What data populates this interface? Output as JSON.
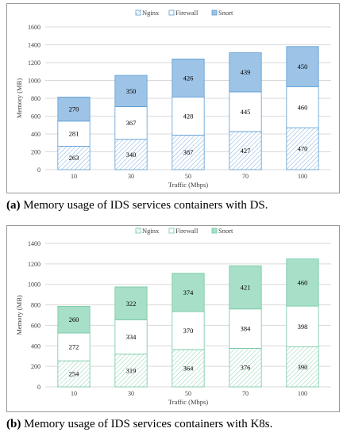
{
  "chart_data": [
    {
      "type": "bar",
      "stacked": true,
      "categories": [
        "10",
        "30",
        "50",
        "70",
        "100"
      ],
      "series": [
        {
          "name": "Nginx",
          "values": [
            263,
            340,
            387,
            427,
            470
          ]
        },
        {
          "name": "Firewall",
          "values": [
            281,
            367,
            428,
            445,
            460
          ]
        },
        {
          "name": "Snort",
          "values": [
            270,
            350,
            426,
            439,
            450
          ]
        }
      ],
      "xlabel": "Traffic (Mbps)",
      "ylabel": "Memory (MB)",
      "ylim": [
        0,
        1600
      ],
      "yticks": [
        0,
        200,
        400,
        600,
        800,
        1000,
        1200,
        1400,
        1600
      ],
      "legend": "top-center",
      "grid": "horizontal",
      "colors": {
        "nginx": "#5b9bd5",
        "firewall": "#5b9bd5",
        "snort": "#9dc3e6",
        "border": "#5b9bd5"
      },
      "caption_label": "(a)",
      "caption_text": " Memory usage of IDS services containers with DS."
    },
    {
      "type": "bar",
      "stacked": true,
      "categories": [
        "10",
        "30",
        "50",
        "70",
        "100"
      ],
      "series": [
        {
          "name": "Nginx",
          "values": [
            254,
            319,
            364,
            376,
            390
          ]
        },
        {
          "name": "Firewall",
          "values": [
            272,
            334,
            370,
            384,
            398
          ]
        },
        {
          "name": "Snort",
          "values": [
            260,
            322,
            374,
            421,
            460
          ]
        }
      ],
      "xlabel": "Traffic (Mbps)",
      "ylabel": "Memory (MB)",
      "ylim": [
        0,
        1400
      ],
      "yticks": [
        0,
        200,
        400,
        600,
        800,
        1000,
        1200,
        1400
      ],
      "legend": "top-center",
      "grid": "horizontal",
      "colors": {
        "nginx": "#70c8a0",
        "firewall": "#70c8a0",
        "snort": "#a8dfc8",
        "border": "#70c8a0"
      },
      "caption_label": "(b)",
      "caption_text": " Memory usage of IDS services containers with K8s."
    }
  ]
}
